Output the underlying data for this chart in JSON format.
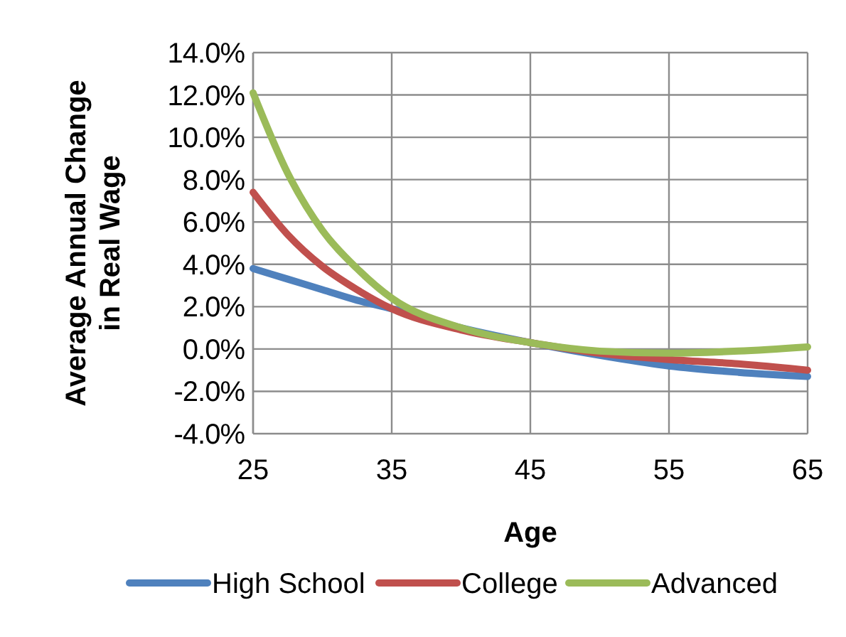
{
  "chart_data": {
    "type": "line",
    "xlabel": "Age",
    "ylabel": "Average Annual Change\nin Real Wage",
    "x": [
      25,
      27.5,
      30,
      32.5,
      35,
      40,
      45,
      50,
      55,
      60,
      65
    ],
    "series": [
      {
        "name": "High School",
        "color": "#4f81bd",
        "values": [
          3.8,
          3.3,
          2.8,
          2.3,
          1.9,
          1.0,
          0.3,
          -0.3,
          -0.8,
          -1.1,
          -1.3
        ]
      },
      {
        "name": "College",
        "color": "#c0504d",
        "values": [
          7.4,
          5.4,
          3.9,
          2.8,
          1.9,
          0.9,
          0.3,
          -0.2,
          -0.5,
          -0.7,
          -1.0
        ]
      },
      {
        "name": "Advanced",
        "color": "#9bbb59",
        "values": [
          12.1,
          8.3,
          5.6,
          3.8,
          2.4,
          1.0,
          0.3,
          -0.1,
          -0.2,
          -0.1,
          0.1
        ]
      }
    ],
    "xlim": [
      25,
      65
    ],
    "xticks": [
      25,
      35,
      45,
      55,
      65
    ],
    "ylim": [
      -4,
      14
    ],
    "yticks": [
      {
        "value": -4,
        "label": "-4.0%"
      },
      {
        "value": -2,
        "label": "-2.0%"
      },
      {
        "value": 0,
        "label": "0.0%"
      },
      {
        "value": 2,
        "label": "2.0%"
      },
      {
        "value": 4,
        "label": "4.0%"
      },
      {
        "value": 6,
        "label": "6.0%"
      },
      {
        "value": 8,
        "label": "8.0%"
      },
      {
        "value": 10,
        "label": "10.0%"
      },
      {
        "value": 12,
        "label": "12.0%"
      },
      {
        "value": 14,
        "label": "14.0%"
      }
    ],
    "grid": true,
    "legend": "bottom",
    "marker": "none",
    "line_style": "solid"
  }
}
